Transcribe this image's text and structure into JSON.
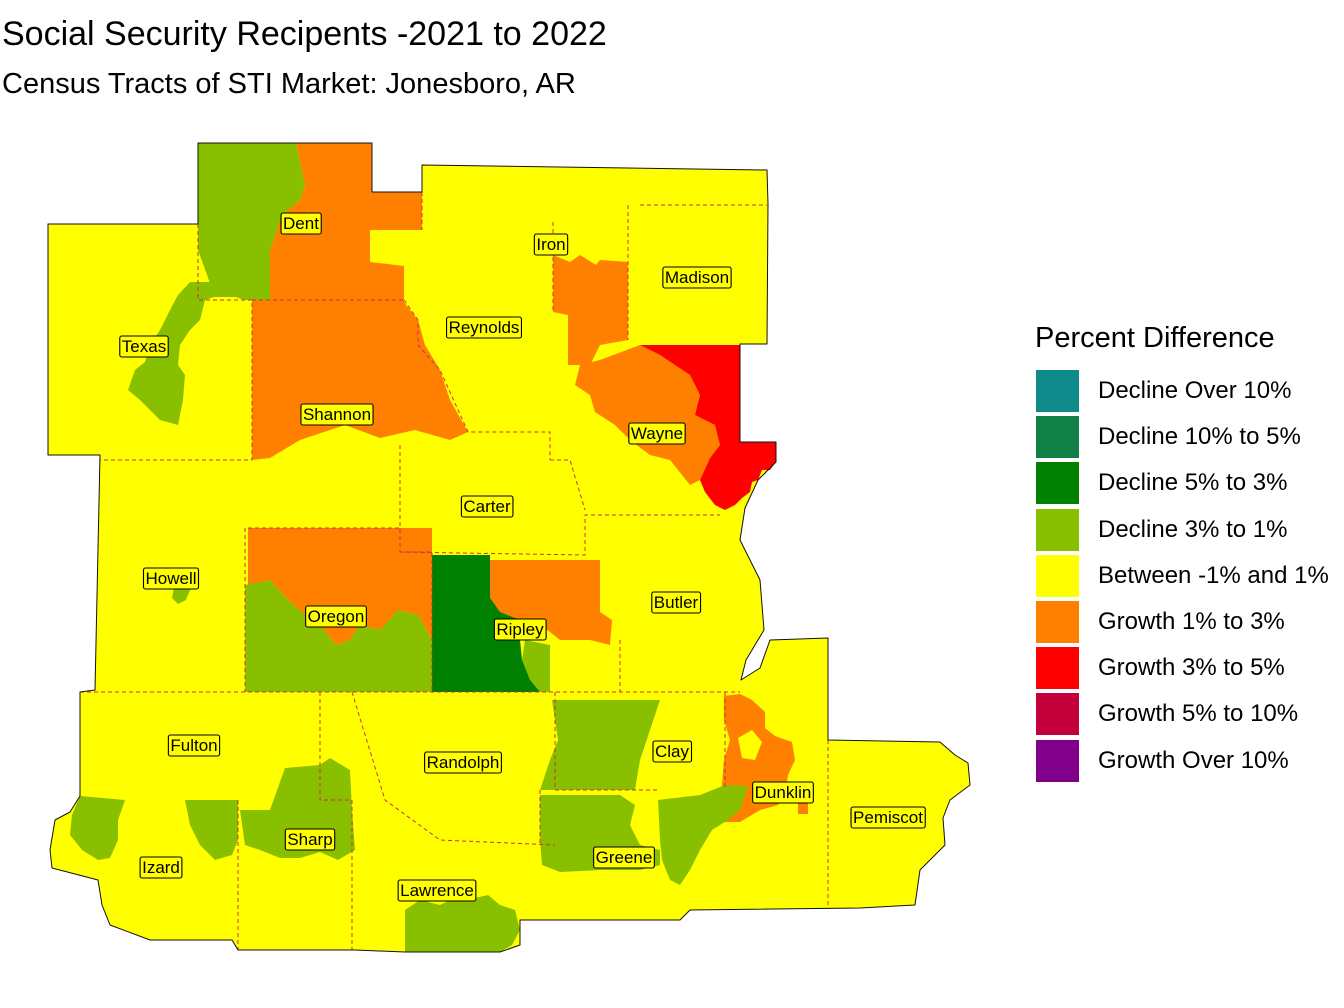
{
  "title": "Social Security Recipents -2021 to 2022",
  "subtitle": "Census Tracts of STI Market: Jonesboro, AR",
  "colors": {
    "decline_over_10": "#0e8a8a",
    "decline_10_to_5": "#118047",
    "decline_5_to_3": "#008000",
    "decline_3_to_1": "#88c000",
    "between": "#ffff00",
    "growth_1_to_3": "#ff8000",
    "growth_3_to_5": "#ff0000",
    "growth_5_to_10": "#c4003c",
    "growth_over_10": "#80008a",
    "county_border": "#c8314a"
  },
  "legend": {
    "title": "Percent Difference",
    "items": [
      {
        "label": "Decline Over 10%",
        "color": "#0e8a8a"
      },
      {
        "label": "Decline 10% to 5%",
        "color": "#118047"
      },
      {
        "label": "Decline 5% to 3%",
        "color": "#008000"
      },
      {
        "label": "Decline 3% to 1%",
        "color": "#88c000"
      },
      {
        "label": "Between -1% and 1%",
        "color": "#ffff00"
      },
      {
        "label": "Growth 1% to 3%",
        "color": "#ff8000"
      },
      {
        "label": "Growth 3% to 5%",
        "color": "#ff0000"
      },
      {
        "label": "Growth 5% to 10%",
        "color": "#c4003c"
      },
      {
        "label": "Growth Over 10%",
        "color": "#80008a"
      }
    ]
  },
  "counties": [
    {
      "name": "Dent"
    },
    {
      "name": "Iron"
    },
    {
      "name": "Madison"
    },
    {
      "name": "Texas"
    },
    {
      "name": "Reynolds"
    },
    {
      "name": "Shannon"
    },
    {
      "name": "Wayne"
    },
    {
      "name": "Carter"
    },
    {
      "name": "Howell"
    },
    {
      "name": "Butler"
    },
    {
      "name": "Oregon"
    },
    {
      "name": "Ripley"
    },
    {
      "name": "Fulton"
    },
    {
      "name": "Randolph"
    },
    {
      "name": "Clay"
    },
    {
      "name": "Dunklin"
    },
    {
      "name": "Sharp"
    },
    {
      "name": "Pemiscot"
    },
    {
      "name": "Izard"
    },
    {
      "name": "Greene"
    },
    {
      "name": "Lawrence"
    }
  ]
}
